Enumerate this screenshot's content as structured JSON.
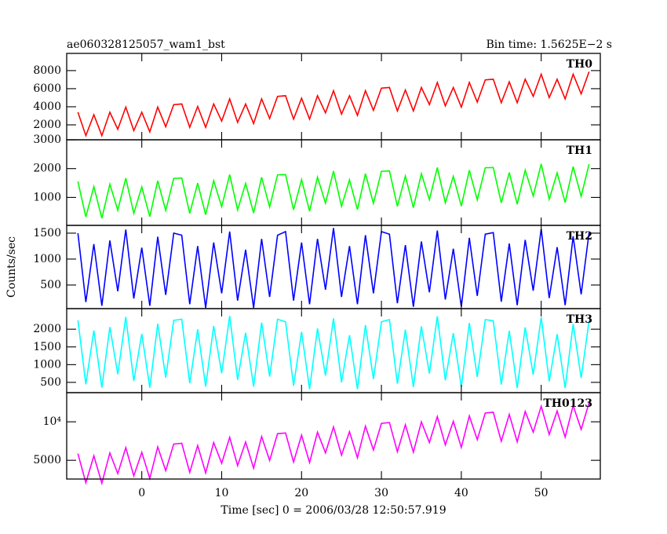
{
  "chart_data": {
    "type": "line",
    "title": "ae060328125057_wam1_bst",
    "subtitle": "Bin time: 1.5625E−2 s",
    "xlabel": "Time [sec] 0 = 2006/03/28 12:50:57.919",
    "ylabel": "Counts/sec",
    "xlim": [
      -9.4,
      57.4
    ],
    "xticks": [
      0,
      10,
      20,
      30,
      40,
      50
    ],
    "x": [
      -8,
      -7,
      -6,
      -5,
      -4,
      -3,
      -2,
      -1,
      0,
      1,
      2,
      3,
      4,
      5,
      6,
      7,
      8,
      9,
      10,
      11,
      12,
      13,
      14,
      15,
      16,
      17,
      18,
      19,
      20,
      21,
      22,
      23,
      24,
      25,
      26,
      27,
      28,
      29,
      30,
      31,
      32,
      33,
      34,
      35,
      36,
      37,
      38,
      39,
      40,
      41,
      42,
      43,
      44,
      45,
      46,
      47,
      48,
      49,
      50,
      51,
      52,
      53,
      54,
      55,
      56
    ],
    "series": [
      {
        "name": "TH0",
        "color": "#ff0000",
        "ylim": [
          350,
          9900
        ],
        "yticks": [
          2000,
          4000,
          6000,
          8000
        ],
        "values": [
          3400,
          810,
          3120,
          810,
          3400,
          1510,
          3960,
          1370,
          3400,
          1230,
          3960,
          1790,
          4240,
          4310,
          1720,
          4030,
          1720,
          4310,
          2420,
          4870,
          2280,
          4310,
          2140,
          4870,
          2700,
          5150,
          5220,
          2630,
          4940,
          2630,
          5220,
          3330,
          5780,
          3190,
          5220,
          3050,
          5780,
          3610,
          6060,
          6130,
          3540,
          5850,
          3540,
          6130,
          4240,
          6690,
          4100,
          6130,
          3960,
          6690,
          4520,
          6970,
          7040,
          4450,
          6760,
          4450,
          7040,
          5150,
          7600,
          5010,
          7040,
          4870,
          7600,
          5430,
          7880
        ]
      },
      {
        "name": "TH1",
        "color": "#00ff00",
        "ylim": [
          30,
          3000
        ],
        "yticks": [
          1000,
          2000,
          3000
        ],
        "values": [
          1550,
          324,
          1374,
          278,
          1458,
          557,
          1671,
          446,
          1365,
          335,
          1579,
          548,
          1663,
          1672,
          447,
          1496,
          400,
          1580,
          679,
          1794,
          568,
          1487,
          457,
          1701,
          671,
          1785,
          1794,
          569,
          1618,
          523,
          1702,
          801,
          1916,
          690,
          1610,
          579,
          1823,
          793,
          1907,
          1917,
          691,
          1740,
          645,
          1824,
          924,
          2038,
          812,
          1732,
          701,
          1946,
          915,
          2029,
          2039,
          813,
          1863,
          767,
          1946,
          1046,
          2160,
          934,
          1854,
          823,
          2068,
          1037,
          2152
        ]
      },
      {
        "name": "TH2",
        "color": "#0000ff",
        "ylim": [
          45,
          1650
        ],
        "yticks": [
          500,
          1000,
          1500
        ],
        "values": [
          1500,
          170,
          1290,
          100,
          1360,
          380,
          1570,
          240,
          1220,
          100,
          1430,
          310,
          1500,
          1460,
          130,
          1250,
          60,
          1320,
          340,
          1530,
          200,
          1180,
          60,
          1390,
          270,
          1460,
          1530,
          200,
          1320,
          130,
          1390,
          410,
          1600,
          270,
          1250,
          130,
          1460,
          340,
          1530,
          1480,
          150,
          1270,
          80,
          1340,
          360,
          1550,
          220,
          1200,
          80,
          1410,
          290,
          1480,
          1510,
          180,
          1300,
          110,
          1370,
          390,
          1580,
          250,
          1230,
          110,
          1440,
          320,
          1510
        ]
      },
      {
        "name": "TH3",
        "color": "#00ffff",
        "ylim": [
          210,
          2580
        ],
        "yticks": [
          500,
          1000,
          1500,
          2000
        ],
        "values": [
          2250,
          445,
          1965,
          350,
          2060,
          730,
          2345,
          540,
          1870,
          350,
          2155,
          635,
          2250,
          2280,
          475,
          1995,
          380,
          2090,
          760,
          2375,
          570,
          1900,
          380,
          2185,
          665,
          2280,
          2210,
          405,
          1925,
          310,
          2020,
          690,
          2305,
          500,
          1830,
          310,
          2115,
          595,
          2210,
          2270,
          465,
          1985,
          370,
          2080,
          750,
          2365,
          560,
          1890,
          370,
          2175,
          655,
          2270,
          2240,
          435,
          1955,
          340,
          2050,
          720,
          2335,
          530,
          1860,
          340,
          2145,
          625,
          2240
        ]
      },
      {
        "name": "TH0123",
        "color": "#ff00ff",
        "log": true,
        "ylim": [
          3570,
          16900
        ],
        "yticks": [
          {
            "value": 10000,
            "label": "10⁴"
          },
          5000
        ],
        "values": [
          5632,
          3341,
          5420,
          3311,
          5709,
          3935,
          6278,
          3779,
          5770,
          3607,
          6360,
          4145,
          6697,
          6794,
          4027,
          6530,
          3989,
          6879,
          4742,
          7560,
          4547,
          6947,
          4346,
          7667,
          4994,
          8064,
          8184,
          4853,
          7872,
          4807,
          8286,
          5716,
          9117,
          5486,
          8375,
          5234,
          9237,
          6019,
          9720,
          9859,
          5842,
          9479,
          5790,
          9985,
          6884,
          10974,
          6607,
          10089,
          6309,
          11125,
          7244,
          11707,
          11881,
          7045,
          11427,
          6977,
          12034,
          8298,
          13232,
          7960,
          12147,
          7596,
          13396,
          8723,
          14080
        ]
      }
    ]
  }
}
